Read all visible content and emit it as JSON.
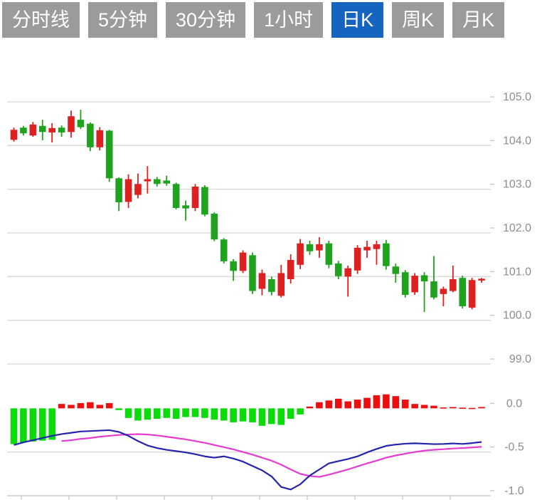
{
  "toolbar": {
    "buttons": [
      {
        "label": "分时线",
        "active": false
      },
      {
        "label": "5分钟",
        "active": false
      },
      {
        "label": "30分钟",
        "active": false
      },
      {
        "label": "1小时",
        "active": false
      },
      {
        "label": "日K",
        "active": true
      },
      {
        "label": "周K",
        "active": false
      },
      {
        "label": "月K",
        "active": false
      }
    ]
  },
  "colors": {
    "button_bg": "#9b9b9b",
    "button_active": "#1565c0",
    "button_text": "#ffffff",
    "candle_up_red": "#dd2020",
    "candle_down_green": "#1fa31f",
    "hist_pos_red": "#ec0f0f",
    "hist_neg_green": "#0bdb0b",
    "dif_line_blue": "#2323ad",
    "dea_line_magenta": "#e43bd0",
    "grid": "#d7d7d7",
    "axis": "#c0c0c0",
    "label": "#8d8d8d",
    "background": "#ffffff"
  },
  "chart_data": {
    "type": "candlestick_with_macd",
    "title": "",
    "price_panel": {
      "ylim": [
        98.6,
        105.2
      ],
      "tick_values": [
        105.0,
        104.0,
        103.0,
        102.0,
        101.0,
        100.0,
        99.0
      ],
      "tick_labels": [
        "105.0",
        "104.0",
        "103.0",
        "102.0",
        "101.0",
        "100.0",
        "99.0"
      ],
      "grid": true
    },
    "macd_panel": {
      "ylim": [
        -1.05,
        0.25
      ],
      "tick_values": [
        0.0,
        -0.5,
        -1.0
      ],
      "tick_labels": [
        "0.0",
        "-0.5",
        "-1.0"
      ],
      "grid_value": -0.5
    },
    "x_axis": {
      "labels": [],
      "tick_count": 10
    },
    "ohlc_order": [
      "open",
      "high",
      "low",
      "close"
    ],
    "up_means": "close>=open rendered red (CN convention), close<open rendered green",
    "candles": [
      [
        104.13,
        104.41,
        104.09,
        104.36
      ],
      [
        104.41,
        104.45,
        104.23,
        104.28
      ],
      [
        104.23,
        104.54,
        104.2,
        104.48
      ],
      [
        104.45,
        104.59,
        104.12,
        104.31
      ],
      [
        104.3,
        104.51,
        104.07,
        104.4
      ],
      [
        104.41,
        104.46,
        104.2,
        104.3
      ],
      [
        104.31,
        104.8,
        104.18,
        104.67
      ],
      [
        104.59,
        104.82,
        104.38,
        104.42
      ],
      [
        104.5,
        104.53,
        103.87,
        103.96
      ],
      [
        103.96,
        104.42,
        103.89,
        104.35
      ],
      [
        104.34,
        104.36,
        103.17,
        103.25
      ],
      [
        103.25,
        103.27,
        102.5,
        102.7
      ],
      [
        102.71,
        103.34,
        102.57,
        103.23
      ],
      [
        102.87,
        103.36,
        102.79,
        103.12
      ],
      [
        103.18,
        103.53,
        102.9,
        103.23
      ],
      [
        103.23,
        103.28,
        103.06,
        103.12
      ],
      [
        103.2,
        103.31,
        103.08,
        103.13
      ],
      [
        103.12,
        103.15,
        102.54,
        102.57
      ],
      [
        102.63,
        102.74,
        102.28,
        102.56
      ],
      [
        102.57,
        103.12,
        102.5,
        103.06
      ],
      [
        103.05,
        103.09,
        102.38,
        102.42
      ],
      [
        102.44,
        102.47,
        101.81,
        101.85
      ],
      [
        101.85,
        101.88,
        101.3,
        101.35
      ],
      [
        101.35,
        101.4,
        100.9,
        101.13
      ],
      [
        101.13,
        101.6,
        101.08,
        101.55
      ],
      [
        101.49,
        101.55,
        100.6,
        100.67
      ],
      [
        100.72,
        101.16,
        100.57,
        101.08
      ],
      [
        100.94,
        101.0,
        100.57,
        100.65
      ],
      [
        100.56,
        101.27,
        100.52,
        101.08
      ],
      [
        100.94,
        101.51,
        100.84,
        101.38
      ],
      [
        101.27,
        101.86,
        101.17,
        101.76
      ],
      [
        101.74,
        101.82,
        101.5,
        101.58
      ],
      [
        101.6,
        101.9,
        101.43,
        101.74
      ],
      [
        101.76,
        101.82,
        101.19,
        101.27
      ],
      [
        101.3,
        101.36,
        100.94,
        101.01
      ],
      [
        101.0,
        101.25,
        100.54,
        101.19
      ],
      [
        101.14,
        101.72,
        101.06,
        101.66
      ],
      [
        101.6,
        101.82,
        101.43,
        101.68
      ],
      [
        101.63,
        101.82,
        101.27,
        101.74
      ],
      [
        101.76,
        101.84,
        101.16,
        101.24
      ],
      [
        101.23,
        101.3,
        100.86,
        101.06
      ],
      [
        101.1,
        101.15,
        100.52,
        100.58
      ],
      [
        100.64,
        101.08,
        100.58,
        101.02
      ],
      [
        101.03,
        101.1,
        100.19,
        100.89
      ],
      [
        100.89,
        101.47,
        100.48,
        100.52
      ],
      [
        100.6,
        100.77,
        100.32,
        100.72
      ],
      [
        100.67,
        101.25,
        100.64,
        100.94
      ],
      [
        100.97,
        101.02,
        100.27,
        100.32
      ],
      [
        100.29,
        100.97,
        100.25,
        100.92
      ],
      [
        100.91,
        100.97,
        100.86,
        100.95
      ]
    ],
    "macd_histogram": [
      -0.41,
      -0.39,
      -0.38,
      -0.37,
      -0.36,
      0.05,
      0.04,
      0.06,
      0.07,
      0.04,
      0.06,
      -0.02,
      -0.11,
      -0.14,
      -0.13,
      -0.12,
      -0.11,
      -0.12,
      -0.1,
      -0.1,
      -0.11,
      -0.13,
      -0.14,
      -0.16,
      -0.15,
      -0.16,
      -0.2,
      -0.18,
      -0.19,
      -0.12,
      -0.07,
      0.02,
      0.07,
      0.09,
      0.11,
      0.08,
      0.1,
      0.12,
      0.15,
      0.16,
      0.14,
      0.1,
      0.05,
      0.04,
      0.03,
      0.01,
      0.015,
      0.008,
      0.005,
      0.015
    ],
    "dif_line": [
      -0.42,
      -0.39,
      -0.365,
      -0.34,
      -0.315,
      -0.295,
      -0.28,
      -0.265,
      -0.26,
      -0.255,
      -0.25,
      -0.27,
      -0.315,
      -0.375,
      -0.425,
      -0.455,
      -0.475,
      -0.49,
      -0.505,
      -0.525,
      -0.55,
      -0.565,
      -0.55,
      -0.575,
      -0.61,
      -0.66,
      -0.71,
      -0.78,
      -0.9,
      -0.93,
      -0.87,
      -0.77,
      -0.7,
      -0.63,
      -0.605,
      -0.58,
      -0.55,
      -0.505,
      -0.465,
      -0.43,
      -0.415,
      -0.405,
      -0.4,
      -0.405,
      -0.41,
      -0.408,
      -0.402,
      -0.408,
      -0.398,
      -0.385
    ],
    "dea_line": [
      null,
      null,
      null,
      null,
      null,
      -0.375,
      -0.365,
      -0.35,
      -0.34,
      -0.325,
      -0.315,
      -0.305,
      -0.3,
      -0.295,
      -0.3,
      -0.31,
      -0.325,
      -0.34,
      -0.355,
      -0.375,
      -0.395,
      -0.42,
      -0.445,
      -0.47,
      -0.5,
      -0.53,
      -0.565,
      -0.6,
      -0.645,
      -0.7,
      -0.75,
      -0.775,
      -0.785,
      -0.76,
      -0.73,
      -0.7,
      -0.665,
      -0.63,
      -0.6,
      -0.565,
      -0.54,
      -0.52,
      -0.5,
      -0.485,
      -0.475,
      -0.468,
      -0.46,
      -0.455,
      -0.448,
      -0.44
    ]
  }
}
